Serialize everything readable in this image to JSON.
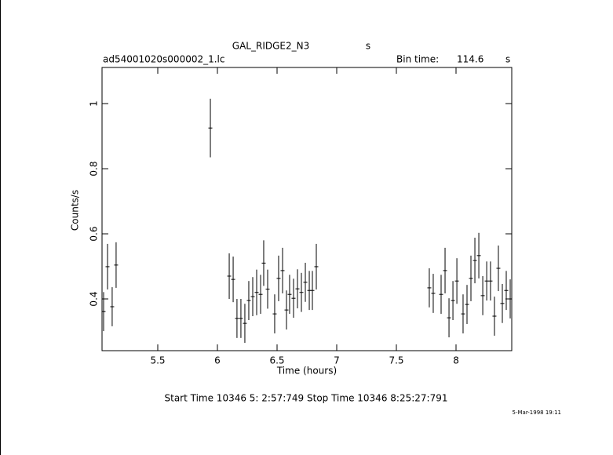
{
  "chart_data": {
    "type": "errorbar",
    "title": "GAL_RIDGE2_N3",
    "title_unit": "s",
    "file_name": "ad54001020s000002_1.lc",
    "bin_time_label": "Bin time:",
    "bin_time": 114.6,
    "bin_time_unit": "s",
    "x_label": "Time (hours)",
    "y_label": "Counts/s",
    "footer": "Start Time 10346  5: 2:57:749    Stop Time 10346  8:25:27:791",
    "date": "5-Mar-1998 19:11",
    "xlim": [
      5.033,
      8.467
    ],
    "ylim": [
      0.241,
      1.111
    ],
    "xticks": [
      5.5,
      6,
      6.5,
      7,
      7.5,
      8
    ],
    "yticks": [
      0.4,
      0.6,
      0.8,
      1
    ],
    "color": "#000000",
    "x": [
      5.046,
      5.079,
      5.118,
      5.151,
      5.941,
      6.099,
      6.132,
      6.164,
      6.197,
      6.23,
      6.263,
      6.296,
      6.329,
      6.362,
      6.388,
      6.421,
      6.48,
      6.513,
      6.546,
      6.579,
      6.605,
      6.638,
      6.671,
      6.704,
      6.737,
      6.77,
      6.796,
      6.829,
      7.776,
      7.809,
      7.875,
      7.908,
      7.941,
      7.974,
      8.007,
      8.059,
      8.092,
      8.125,
      8.158,
      8.191,
      8.224,
      8.257,
      8.289,
      8.322,
      8.355,
      8.388,
      8.421,
      8.454
    ],
    "values": [
      0.361,
      0.499,
      0.376,
      0.504,
      0.925,
      0.47,
      0.46,
      0.34,
      0.34,
      0.325,
      0.395,
      0.407,
      0.42,
      0.414,
      0.51,
      0.43,
      0.354,
      0.463,
      0.487,
      0.366,
      0.414,
      0.402,
      0.431,
      0.42,
      0.451,
      0.426,
      0.426,
      0.499,
      0.434,
      0.417,
      0.414,
      0.487,
      0.342,
      0.395,
      0.455,
      0.354,
      0.383,
      0.463,
      0.518,
      0.533,
      0.41,
      0.455,
      0.455,
      0.347,
      0.494,
      0.386,
      0.426,
      0.4
    ],
    "errors": [
      0.06,
      0.07,
      0.06,
      0.07,
      0.09,
      0.07,
      0.07,
      0.06,
      0.06,
      0.06,
      0.06,
      0.06,
      0.07,
      0.06,
      0.07,
      0.06,
      0.06,
      0.07,
      0.07,
      0.06,
      0.06,
      0.06,
      0.06,
      0.06,
      0.06,
      0.06,
      0.06,
      0.07,
      0.06,
      0.06,
      0.06,
      0.07,
      0.06,
      0.06,
      0.07,
      0.06,
      0.06,
      0.07,
      0.07,
      0.07,
      0.06,
      0.06,
      0.06,
      0.06,
      0.07,
      0.06,
      0.06,
      0.06
    ]
  }
}
